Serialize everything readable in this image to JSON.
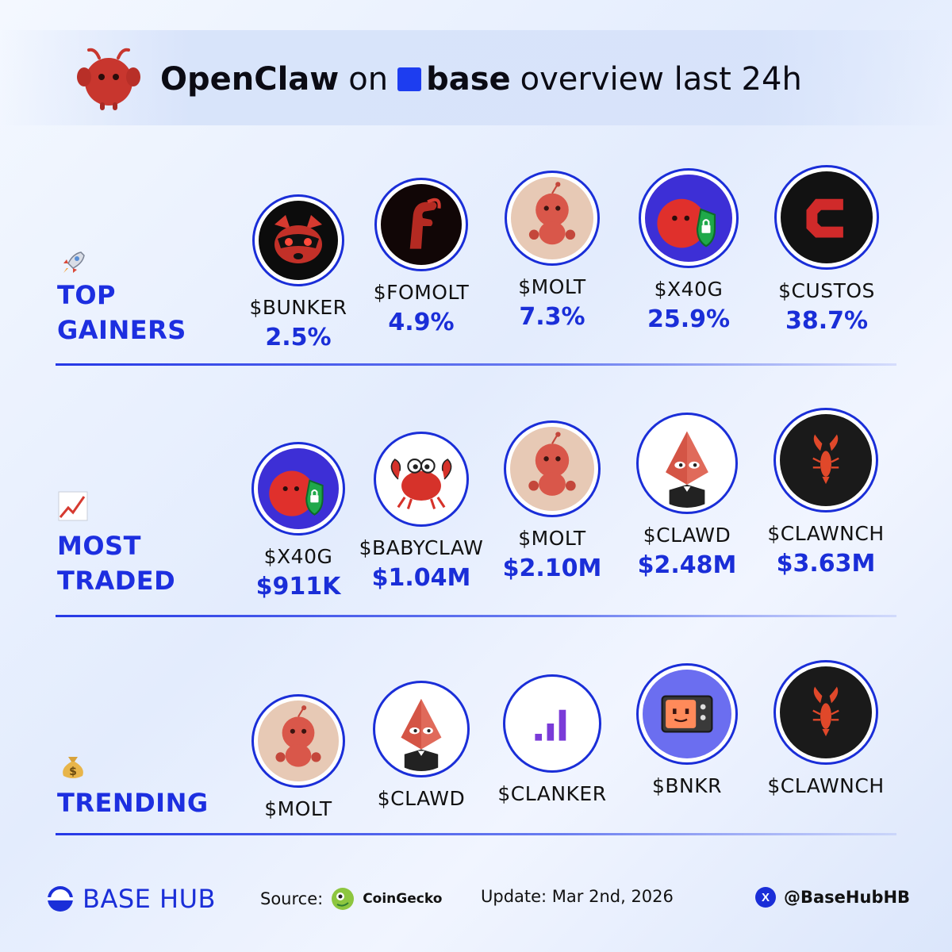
{
  "header": {
    "brand": "OpenClaw",
    "on_word": "on",
    "base_word": "base",
    "suffix": "overview last 24h"
  },
  "sections": {
    "top_gainers": {
      "label_line1": "TOP",
      "label_line2": "GAINERS",
      "icon": "rocket-icon",
      "tokens": [
        {
          "symbol": "$BUNKER",
          "value": "2.5%",
          "logo": "raccoon"
        },
        {
          "symbol": "$FOMOLT",
          "value": "4.9%",
          "logo": "claw-f"
        },
        {
          "symbol": "$MOLT",
          "value": "7.3%",
          "logo": "molt-crab"
        },
        {
          "symbol": "$X40G",
          "value": "25.9%",
          "logo": "red-shield"
        },
        {
          "symbol": "$CUSTOS",
          "value": "38.7%",
          "logo": "custos-c"
        }
      ]
    },
    "most_traded": {
      "label_line1": "MOST",
      "label_line2": "TRADED",
      "icon": "chart-up-icon",
      "tokens": [
        {
          "symbol": "$X40G",
          "value": "$911K",
          "logo": "red-shield"
        },
        {
          "symbol": "$BABYCLAW",
          "value": "$1.04M",
          "logo": "baby-crab"
        },
        {
          "symbol": "$MOLT",
          "value": "$2.10M",
          "logo": "molt-crab"
        },
        {
          "symbol": "$CLAWD",
          "value": "$2.48M",
          "logo": "pepe-eth"
        },
        {
          "symbol": "$CLAWNCH",
          "value": "$3.63M",
          "logo": "lobster"
        }
      ]
    },
    "trending": {
      "label": "TRENDING",
      "icon": "money-bag-icon",
      "tokens": [
        {
          "symbol": "$MOLT",
          "logo": "molt-crab"
        },
        {
          "symbol": "$CLAWD",
          "logo": "pepe-eth"
        },
        {
          "symbol": "$CLANKER",
          "logo": "clanker-bars"
        },
        {
          "symbol": "$BNKR",
          "logo": "bnkr-tv"
        },
        {
          "symbol": "$CLAWNCH",
          "logo": "lobster"
        }
      ]
    }
  },
  "footer": {
    "brand": "BASE HUB",
    "source_label": "Source:",
    "source_name": "CoinGecko",
    "update": "Update: Mar 2nd, 2026",
    "handle": "@BaseHubHB"
  },
  "colors": {
    "accent": "#1a2ed8",
    "base_blue": "#1d3df0",
    "mascot_red": "#c8362e"
  }
}
